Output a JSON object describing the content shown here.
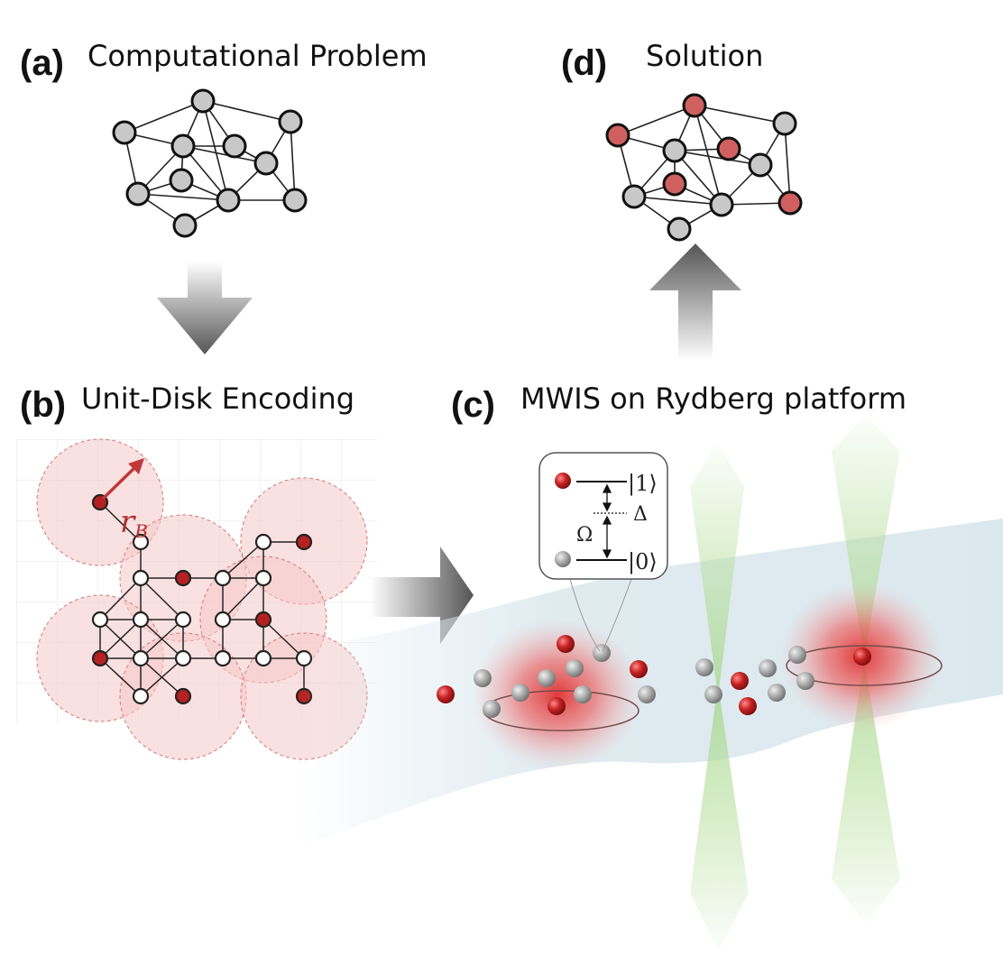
{
  "panels": {
    "a": {
      "letter": "(a)",
      "title": "Computational Problem"
    },
    "b": {
      "letter": "(b)",
      "title": "Unit-Disk Encoding"
    },
    "c": {
      "letter": "(c)",
      "title": "MWIS on Rydberg platform"
    },
    "d": {
      "letter": "(d)",
      "title": "Solution"
    }
  },
  "encoding": {
    "radius_symbol": "r",
    "radius_subscript": "B"
  },
  "level_diagram": {
    "excited_state": "|1⟩",
    "ground_state": "|0⟩",
    "detuning_symbol": "Δ",
    "rabi_symbol": "Ω"
  },
  "colors": {
    "node_gray": "#c8c8c8",
    "node_red": "#d06060",
    "atom_red": "#b52020",
    "arrow_gray": "#555555",
    "disk_pink": "#f5c8c8",
    "beam_green": "#c8e6b0"
  }
}
